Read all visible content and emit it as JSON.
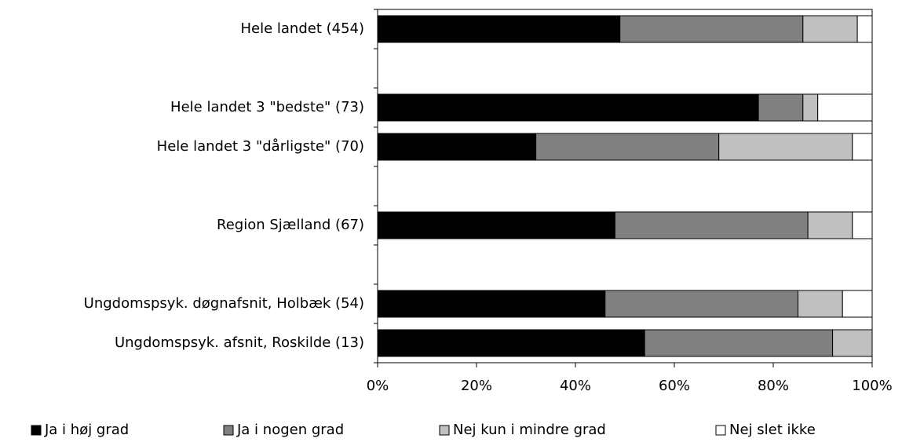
{
  "chart_data": {
    "type": "stacked_barh",
    "categories": [
      "Hele landet  (454)",
      null,
      "Hele landet 3 \"bedste\" (73)",
      "Hele landet 3 \"dårligste\" (70)",
      null,
      "Region Sjælland (67)",
      null,
      "Ungdomspsyk. døgnafsnit, Holbæk (54)",
      "Ungdomspsyk. afsnit, Roskilde (13)"
    ],
    "series": [
      {
        "name": "Ja i høj grad",
        "color": "#000000",
        "values": [
          49,
          null,
          77,
          32,
          null,
          48,
          null,
          46,
          54
        ]
      },
      {
        "name": "Ja i nogen grad",
        "color": "#808080",
        "values": [
          37,
          null,
          9,
          37,
          null,
          39,
          null,
          39,
          38
        ]
      },
      {
        "name": "Nej kun i mindre grad",
        "color": "#c0c0c0",
        "values": [
          11,
          null,
          3,
          27,
          null,
          9,
          null,
          9,
          8
        ]
      },
      {
        "name": "Nej slet ikke",
        "color": "#ffffff",
        "values": [
          3,
          null,
          11,
          4,
          null,
          4,
          null,
          6,
          0
        ]
      }
    ],
    "xlim": [
      0,
      100
    ],
    "xticks": [
      {
        "value": 0,
        "label": "0%"
      },
      {
        "value": 20,
        "label": "20%"
      },
      {
        "value": 40,
        "label": "40%"
      },
      {
        "value": 60,
        "label": "60%"
      },
      {
        "value": 80,
        "label": "80%"
      },
      {
        "value": 100,
        "label": "100%"
      }
    ],
    "legend": "bottom"
  }
}
